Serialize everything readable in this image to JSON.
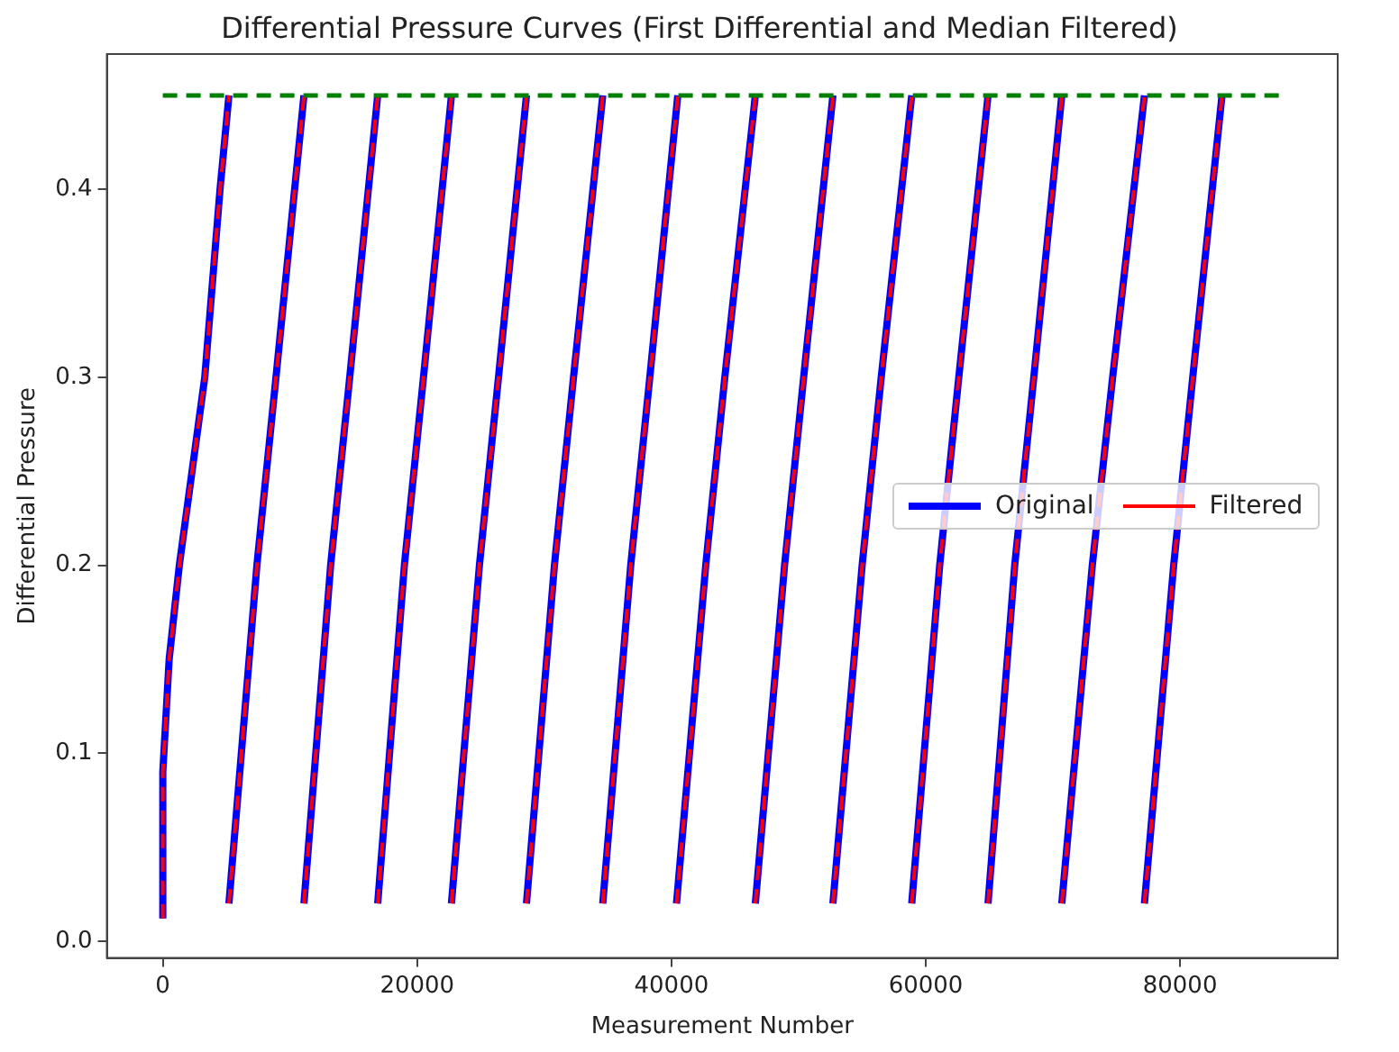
{
  "chart_data": {
    "type": "line",
    "title": "Differential Pressure Curves (First Differential and Median Filtered)",
    "xlabel": "Measurement Number",
    "ylabel": "Differential Pressure",
    "xlim": [
      -4400,
      92400
    ],
    "ylim": [
      -0.009,
      0.472
    ],
    "xticks": [
      0,
      20000,
      40000,
      60000,
      80000
    ],
    "yticks": [
      {
        "value": 0,
        "label": "0.0"
      },
      {
        "value": 0.1,
        "label": "0.1"
      },
      {
        "value": 0.2,
        "label": "0.2"
      },
      {
        "value": 0.3,
        "label": "0.3"
      },
      {
        "value": 0.4,
        "label": "0.4"
      }
    ],
    "grid": false,
    "legend": "right",
    "marker": "none",
    "series": [
      {
        "name": "Original",
        "color": "#0000ff",
        "line_style": "solid",
        "x": [
          0,
          0,
          500,
          1300,
          3300,
          4500,
          5200,
          null,
          5200,
          7400,
          8900,
          11100,
          null,
          11100,
          13200,
          14700,
          16900,
          null,
          16900,
          19000,
          20500,
          22700,
          null,
          22700,
          24900,
          26400,
          28600,
          null,
          28600,
          30800,
          32300,
          34600,
          null,
          34600,
          36800,
          38300,
          40500,
          null,
          40400,
          42700,
          44200,
          46600,
          null,
          46600,
          48900,
          50400,
          52700,
          null,
          52700,
          55000,
          56500,
          58900,
          null,
          58900,
          61100,
          62600,
          64900,
          null,
          64900,
          67000,
          68500,
          70700,
          null,
          70700,
          73100,
          74700,
          77200,
          null,
          77200,
          79500,
          81000,
          83300
        ],
        "values": [
          0.012,
          0.09,
          0.15,
          0.2,
          0.3,
          0.4,
          0.45,
          null,
          0.02,
          0.2,
          0.3,
          0.45,
          null,
          0.02,
          0.2,
          0.3,
          0.45,
          null,
          0.02,
          0.2,
          0.3,
          0.45,
          null,
          0.02,
          0.2,
          0.3,
          0.45,
          null,
          0.02,
          0.2,
          0.3,
          0.45,
          null,
          0.02,
          0.2,
          0.3,
          0.45,
          null,
          0.02,
          0.2,
          0.3,
          0.45,
          null,
          0.02,
          0.2,
          0.3,
          0.45,
          null,
          0.02,
          0.2,
          0.3,
          0.45,
          null,
          0.02,
          0.2,
          0.3,
          0.45,
          null,
          0.02,
          0.2,
          0.3,
          0.45,
          null,
          0.02,
          0.2,
          0.3,
          0.45,
          null,
          0.02,
          0.2,
          0.3,
          0.45
        ]
      },
      {
        "name": "Filtered",
        "color": "#ff0000",
        "line_style": "dashed",
        "x": [
          0,
          0,
          500,
          1300,
          3300,
          4500,
          5200,
          null,
          5200,
          7400,
          8900,
          11100,
          null,
          11100,
          13200,
          14700,
          16900,
          null,
          16900,
          19000,
          20500,
          22700,
          null,
          22700,
          24900,
          26400,
          28600,
          null,
          28600,
          30800,
          32300,
          34600,
          null,
          34600,
          36800,
          38300,
          40500,
          null,
          40400,
          42700,
          44200,
          46600,
          null,
          46600,
          48900,
          50400,
          52700,
          null,
          52700,
          55000,
          56500,
          58900,
          null,
          58900,
          61100,
          62600,
          64900,
          null,
          64900,
          67000,
          68500,
          70700,
          null,
          70700,
          73100,
          74700,
          77200,
          null,
          77200,
          79500,
          81000,
          83300
        ],
        "values": [
          0.012,
          0.09,
          0.15,
          0.2,
          0.3,
          0.4,
          0.45,
          null,
          0.02,
          0.2,
          0.3,
          0.45,
          null,
          0.02,
          0.2,
          0.3,
          0.45,
          null,
          0.02,
          0.2,
          0.3,
          0.45,
          null,
          0.02,
          0.2,
          0.3,
          0.45,
          null,
          0.02,
          0.2,
          0.3,
          0.45,
          null,
          0.02,
          0.2,
          0.3,
          0.45,
          null,
          0.02,
          0.2,
          0.3,
          0.45,
          null,
          0.02,
          0.2,
          0.3,
          0.45,
          null,
          0.02,
          0.2,
          0.3,
          0.45,
          null,
          0.02,
          0.2,
          0.3,
          0.45,
          null,
          0.02,
          0.2,
          0.3,
          0.45,
          null,
          0.02,
          0.2,
          0.3,
          0.45,
          null,
          0.02,
          0.2,
          0.3,
          0.45
        ]
      },
      {
        "color": "#008000",
        "line_style": "dashed",
        "x": [
          0,
          88000
        ],
        "values": [
          0.45,
          0.45
        ]
      }
    ]
  }
}
